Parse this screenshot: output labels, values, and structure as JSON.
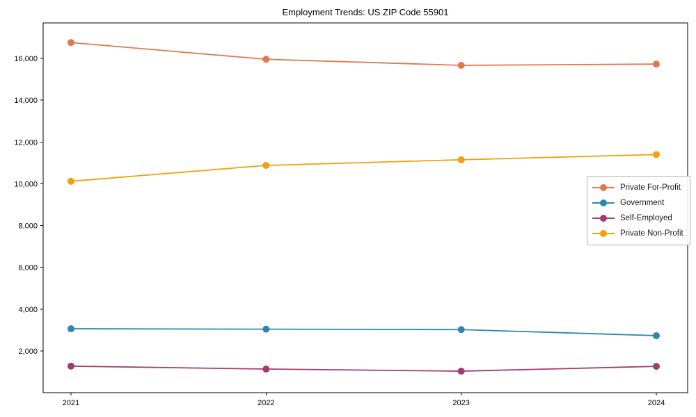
{
  "title": "Employment Trends: US ZIP Code 55901",
  "chart_data": {
    "type": "line",
    "title": "Employment Trends: US ZIP Code 55901",
    "x": [
      "2021",
      "2022",
      "2023",
      "2024"
    ],
    "series": [
      {
        "name": "Private For-Profit",
        "color": "#E0784F",
        "values": [
          16760,
          15960,
          15670,
          15730
        ]
      },
      {
        "name": "Government",
        "color": "#2E86AB",
        "values": [
          3060,
          3040,
          3020,
          2730
        ]
      },
      {
        "name": "Self-Employed",
        "color": "#A23B72",
        "values": [
          1270,
          1130,
          1030,
          1260
        ]
      },
      {
        "name": "Private Non-Profit",
        "color": "#F3A00A",
        "values": [
          10120,
          10880,
          11150,
          11400
        ]
      }
    ],
    "yticks": [
      2000,
      4000,
      6000,
      8000,
      10000,
      12000,
      14000,
      16000
    ],
    "ytick_labels": [
      "2,000",
      "4,000",
      "6,000",
      "8,000",
      "10,000",
      "12,000",
      "14,000",
      "16,000"
    ],
    "ylim": [
      0,
      17700
    ],
    "xlabel": "",
    "ylabel": "",
    "grid": false,
    "legend_position": "center-right"
  }
}
